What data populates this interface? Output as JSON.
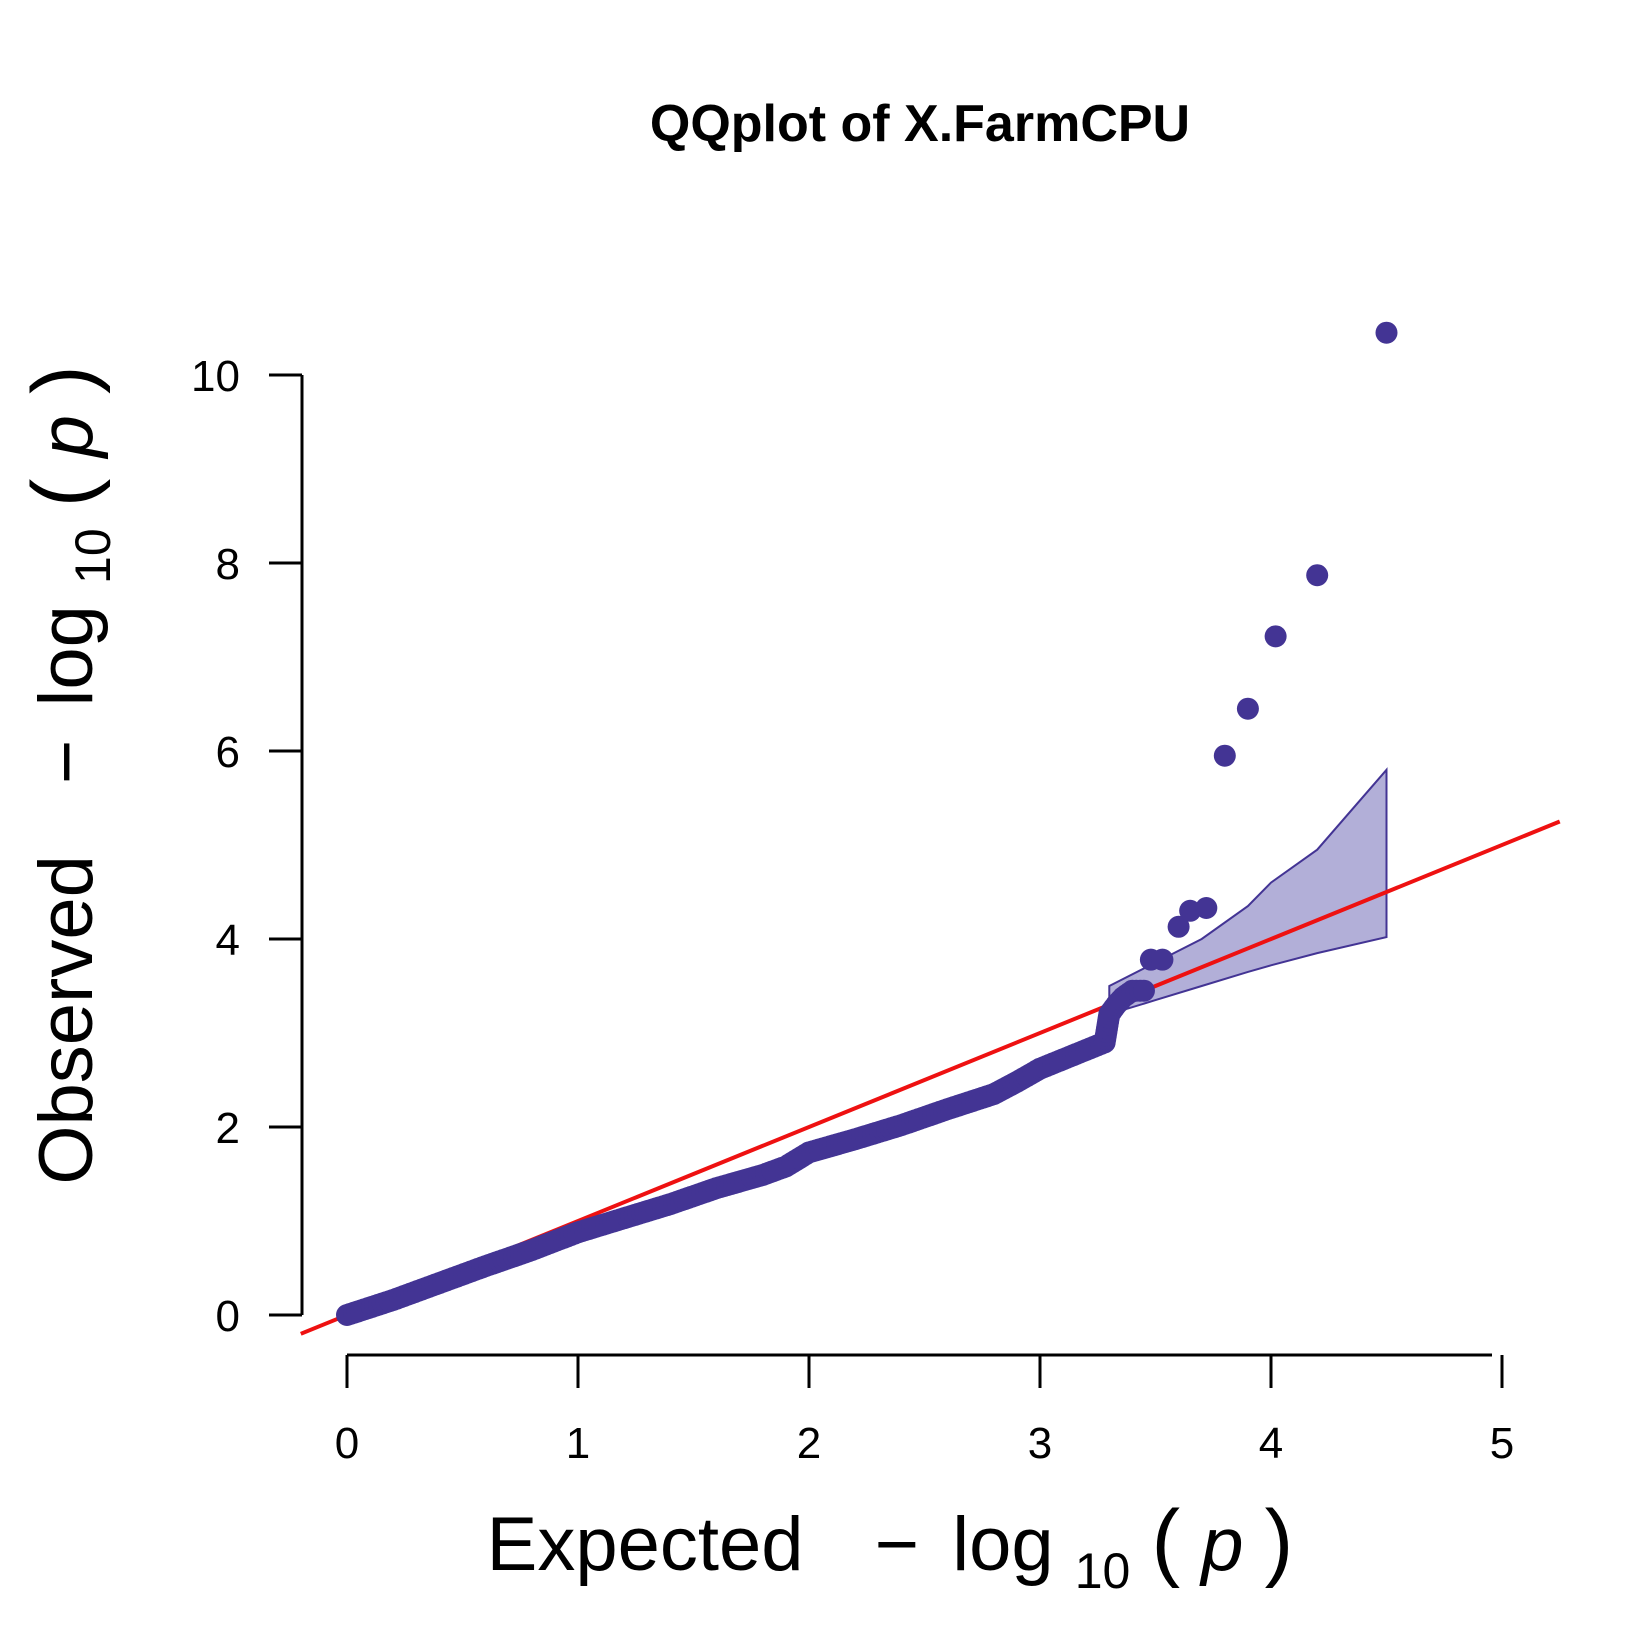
{
  "chart_data": {
    "type": "scatter",
    "title": "QQplot of X.FarmCPU",
    "xlabel": {
      "main": "Expected",
      "minus": "−",
      "log": "log",
      "base": "10",
      "open": "(",
      "var": "p",
      "close": ")"
    },
    "ylabel": {
      "main": "Observed",
      "minus": "−",
      "log": "log",
      "base": "10",
      "open": "(",
      "var": "p",
      "close": ")"
    },
    "xlim": [
      0,
      5
    ],
    "ylim": [
      0,
      10
    ],
    "x_ticks": [
      "0",
      "1",
      "2",
      "3",
      "4",
      "5"
    ],
    "y_ticks": [
      "0",
      "2",
      "4",
      "6",
      "8",
      "10"
    ],
    "grid": false,
    "reference_line": {
      "slope": 1,
      "intercept": 0,
      "color": "#ee1111"
    },
    "point_color": "#433494",
    "band_color": "#b2afd8",
    "band_stroke": "#433494",
    "confidence_band": {
      "x": [
        3.3,
        3.5,
        3.7,
        3.9,
        4.0,
        4.2,
        4.5
      ],
      "upper": [
        3.5,
        3.75,
        4.0,
        4.35,
        4.6,
        4.95,
        5.8
      ],
      "lower": [
        3.2,
        3.35,
        3.5,
        3.65,
        3.72,
        3.85,
        4.02
      ]
    },
    "curve_points": [
      [
        0.0,
        0.0
      ],
      [
        0.2,
        0.16
      ],
      [
        0.4,
        0.34
      ],
      [
        0.6,
        0.52
      ],
      [
        0.8,
        0.69
      ],
      [
        1.0,
        0.88
      ],
      [
        1.2,
        1.03
      ],
      [
        1.4,
        1.18
      ],
      [
        1.6,
        1.35
      ],
      [
        1.8,
        1.49
      ],
      [
        1.9,
        1.58
      ],
      [
        2.0,
        1.73
      ],
      [
        2.2,
        1.87
      ],
      [
        2.4,
        2.02
      ],
      [
        2.6,
        2.19
      ],
      [
        2.8,
        2.35
      ],
      [
        2.9,
        2.48
      ],
      [
        3.0,
        2.62
      ],
      [
        3.1,
        2.72
      ],
      [
        3.2,
        2.82
      ],
      [
        3.28,
        2.9
      ],
      [
        3.3,
        3.2
      ],
      [
        3.33,
        3.3
      ],
      [
        3.36,
        3.38
      ],
      [
        3.4,
        3.45
      ],
      [
        3.45,
        3.45
      ]
    ],
    "outlier_points": [
      [
        3.48,
        3.78
      ],
      [
        3.53,
        3.78
      ],
      [
        3.6,
        4.13
      ],
      [
        3.65,
        4.3
      ],
      [
        3.72,
        4.33
      ],
      [
        3.8,
        5.95
      ],
      [
        3.9,
        6.45
      ],
      [
        4.02,
        7.22
      ],
      [
        4.2,
        7.87
      ],
      [
        4.5,
        10.45
      ]
    ]
  }
}
